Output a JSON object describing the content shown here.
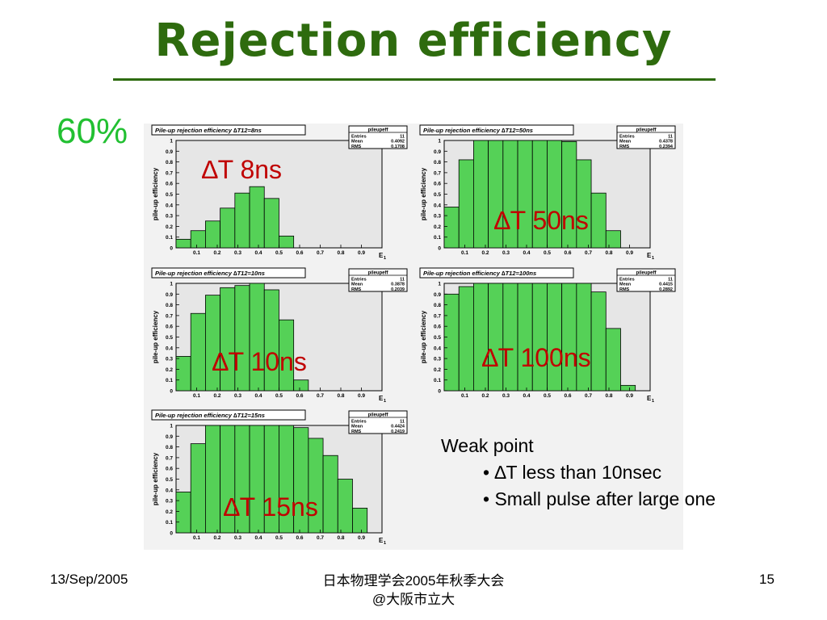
{
  "slide": {
    "title": "Rejection efficiency",
    "threshold": "60%",
    "note": {
      "heading": "Weak point",
      "bullets": [
        "• ∆T less than 10nsec",
        "• Small pulse after large one"
      ]
    },
    "footer": {
      "date": "13/Sep/2005",
      "venue_line1": "日本物理学会2005年秋季大会",
      "venue_line2": "@大阪市立大",
      "page": "15"
    }
  },
  "colors": {
    "title": "#2e6b0e",
    "threshold": "#22c032",
    "bar_fill": "#55d157",
    "label": "#c00000",
    "frame_bg": "#e6e6e6"
  },
  "chart_data": [
    {
      "type": "bar",
      "id": "dt8",
      "title": "Pile-up rejection efficiency ∆T12=8ns",
      "label": "∆T 8ns",
      "stats": {
        "name": "pileupeff",
        "entries": "11",
        "mean": "0.4092",
        "rms": "0.1708"
      },
      "xlabel": "E1",
      "ylabel": "pile-up efficiency",
      "xlim": [
        0,
        1
      ],
      "ylim": [
        0,
        1
      ],
      "bin_width": 0.0714,
      "values": [
        0.08,
        0.16,
        0.25,
        0.37,
        0.51,
        0.57,
        0.46,
        0.11,
        0.0,
        0.0,
        0.0,
        0.0,
        0.0,
        0.0
      ]
    },
    {
      "type": "bar",
      "id": "dt50",
      "title": "Pile-up rejection efficiency ∆T12=50ns",
      "label": "∆T 50ns",
      "stats": {
        "name": "pileupeff",
        "entries": "11",
        "mean": "0.4378",
        "rms": "0.2394"
      },
      "xlabel": "E1",
      "ylabel": "pile-up efficiency",
      "xlim": [
        0,
        1
      ],
      "ylim": [
        0,
        1
      ],
      "bin_width": 0.0714,
      "values": [
        0.38,
        0.82,
        1.0,
        1.0,
        1.0,
        1.0,
        1.0,
        1.0,
        0.99,
        0.82,
        0.51,
        0.16,
        0.0,
        0.0
      ]
    },
    {
      "type": "bar",
      "id": "dt10",
      "title": "Pile-up rejection efficiency ∆T12=10ns",
      "label": "∆T 10ns",
      "stats": {
        "name": "pileupeff",
        "entries": "11",
        "mean": "0.3878",
        "rms": "0.2039"
      },
      "xlabel": "E1",
      "ylabel": "pile-up efficiency",
      "xlim": [
        0,
        1
      ],
      "ylim": [
        0,
        1
      ],
      "bin_width": 0.0714,
      "values": [
        0.32,
        0.72,
        0.89,
        0.96,
        0.98,
        1.0,
        0.94,
        0.66,
        0.1,
        0.0,
        0.0,
        0.0,
        0.0,
        0.0
      ]
    },
    {
      "type": "bar",
      "id": "dt100",
      "title": "Pile-up rejection efficiency ∆T12=100ns",
      "label": "∆T 100ns",
      "stats": {
        "name": "pileupeff",
        "entries": "11",
        "mean": "0.4415",
        "rms": "0.2892"
      },
      "xlabel": "E1",
      "ylabel": "pile-up efficiency",
      "xlim": [
        0,
        1
      ],
      "ylim": [
        0,
        1
      ],
      "bin_width": 0.0714,
      "values": [
        0.9,
        0.97,
        1.0,
        1.0,
        1.0,
        1.0,
        1.0,
        1.0,
        1.0,
        1.0,
        0.92,
        0.58,
        0.05,
        0.0
      ]
    },
    {
      "type": "bar",
      "id": "dt15",
      "title": "Pile-up rejection efficiency ∆T12=15ns",
      "label": "∆T 15ns",
      "stats": {
        "name": "pileupeff",
        "entries": "11",
        "mean": "0.4424",
        "rms": "0.2419"
      },
      "xlabel": "E1",
      "ylabel": "pile-up efficiency",
      "xlim": [
        0,
        1
      ],
      "ylim": [
        0,
        1
      ],
      "bin_width": 0.0714,
      "values": [
        0.38,
        0.83,
        1.0,
        1.0,
        1.0,
        1.0,
        1.0,
        1.0,
        0.98,
        0.88,
        0.72,
        0.5,
        0.23,
        0.0
      ]
    }
  ]
}
